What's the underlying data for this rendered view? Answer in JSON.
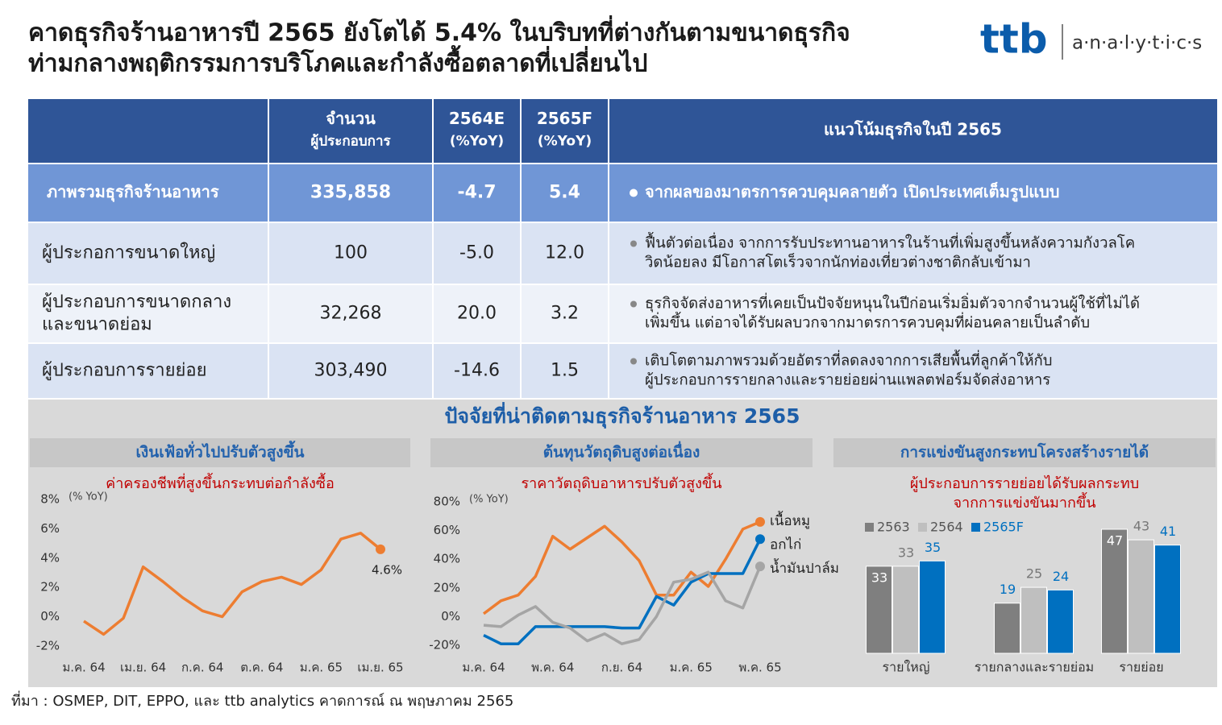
{
  "header": {
    "title": [
      "คาดธุรกิจร้านอาหารปี 2565 ยังโตได้ 5.4% ในบริบทที่ต่างกันตามขนาดธุรกิจ",
      "ท่ามกลางพฤติกรรมการบริโภคและกำลังซื้อตลาดที่เปลี่ยนไป"
    ],
    "logo": {
      "brand": "ttb",
      "name": "a·n·a·l·y·t·i·c·s"
    }
  },
  "table": {
    "columns": [
      [
        "จำนวน",
        "ผู้ประกอบการ"
      ],
      [
        "2564E",
        "(%YoY)"
      ],
      [
        "2565F",
        "(%YoY)"
      ],
      [
        "แนวโน้มธุรกิจในปี 2565"
      ]
    ],
    "rows": [
      {
        "name": [
          "ภาพรวมธุรกิจร้านอาหาร"
        ],
        "count": "335,858",
        "y2564": "-4.7",
        "y2565": "5.4",
        "outlook": [
          "จากผลของมาตรการควบคุมคลายตัว เปิดประเทศเต็มรูปแบบ"
        ]
      },
      {
        "name": [
          "ผู้ประกอการขนาดใหญ่"
        ],
        "count": "100",
        "y2564": "-5.0",
        "y2565": "12.0",
        "outlook": [
          "ฟื้นตัวต่อเนื่อง จากการรับประทานอาหารในร้านที่เพิ่มสูงขึ้นหลังความกังวลโค",
          "วิดน้อยลง มีโอกาสโตเร็วจากนักท่องเที่ยวต่างชาติกลับเข้ามา"
        ]
      },
      {
        "name": [
          "ผู้ประกอบการขนาดกลาง",
          "และขนาดย่อม"
        ],
        "count": "32,268",
        "y2564": "20.0",
        "y2565": "3.2",
        "outlook": [
          "ธุรกิจจัดส่งอาหารที่เคยเป็นปัจจัยหนุนในปีก่อนเริ่มอิ่มตัวจากจำนวนผู้ใช้ที่ไม่ได้",
          "เพิ่มขึ้น แต่อาจได้รับผลบวกจากมาตรการควบคุมที่ผ่อนคลายเป็นลำดับ"
        ]
      },
      {
        "name": [
          "ผู้ประกอบการรายย่อย"
        ],
        "count": "303,490",
        "y2564": "-14.6",
        "y2565": "1.5",
        "outlook": [
          "เติบโตตามภาพรวมด้วยอัตราที่ลดลงจากการเสียพื้นที่ลูกค้าให้กับ",
          "ผู้ประกอบการรายกลางและรายย่อยผ่านแพลตฟอร์มจัดส่งอาหาร"
        ]
      }
    ]
  },
  "section_title": "ปัจจัยที่น่าติดตามธุรกิจร้านอาหาร 2565",
  "chart_data": [
    {
      "type": "line",
      "header": "เงินเฟ้อทั่วไปปรับตัวสูงขึ้น",
      "title": [
        "ค่าครองชีพที่สูงขึ้นกระทบต่อกำลังซื้อ"
      ],
      "y_unit": "(% YoY)",
      "categories": [
        "ม.ค. 64",
        null,
        null,
        "เม.ย. 64",
        null,
        null,
        "ก.ค. 64",
        null,
        null,
        "ต.ค. 64",
        null,
        null,
        "ม.ค. 65",
        null,
        null,
        "เม.ย. 65"
      ],
      "values": [
        -0.3,
        -1.2,
        -0.1,
        3.4,
        2.4,
        1.3,
        0.4,
        0.0,
        1.7,
        2.4,
        2.7,
        2.2,
        3.2,
        5.3,
        5.7,
        4.6
      ],
      "value_labels": [
        null,
        null,
        null,
        null,
        null,
        null,
        null,
        null,
        null,
        null,
        null,
        null,
        null,
        null,
        null,
        "4.6%"
      ],
      "color": "#ed7d31",
      "ylim": [
        -2,
        8
      ],
      "yticks": [
        {
          "value": -2,
          "label": "-2%"
        },
        {
          "value": 0,
          "label": "0%"
        },
        {
          "value": 2,
          "label": "2%"
        },
        {
          "value": 4,
          "label": "4%"
        },
        {
          "value": 6,
          "label": "6%"
        },
        {
          "value": 8,
          "label": "8%"
        }
      ]
    },
    {
      "type": "line",
      "header": "ต้นทุนวัตถุดิบสูงต่อเนื่อง",
      "title": [
        "ราคาวัตถุดิบอาหารปรับตัวสูงขึ้น"
      ],
      "y_unit": "(% YoY)",
      "categories": [
        "ม.ค. 64",
        null,
        null,
        null,
        "พ.ค. 64",
        null,
        null,
        null,
        "ก.ย. 64",
        null,
        null,
        null,
        "ม.ค. 65",
        null,
        null,
        null,
        "พ.ค. 65"
      ],
      "series": [
        {
          "name": "เนื้อหมู",
          "color": "#ed7d31",
          "values": [
            2,
            11,
            15,
            28,
            56,
            47,
            55,
            63,
            52,
            39,
            15,
            15,
            31,
            21,
            40,
            61,
            66
          ]
        },
        {
          "name": "อกไก่",
          "color": "#0070c0",
          "values": [
            -13,
            -19,
            -19,
            -7,
            -7,
            -7,
            -7,
            -7,
            -8,
            -8,
            14,
            8,
            24,
            30,
            30,
            30,
            54
          ]
        },
        {
          "name": "น้ำมันปาล์ม",
          "color": "#a5a5a5",
          "values": [
            -6,
            -7,
            1,
            7,
            -4,
            -8,
            -17,
            -12,
            -19,
            -16,
            0,
            24,
            26,
            31,
            11,
            6,
            35
          ]
        }
      ],
      "ylim": [
        -20,
        80
      ],
      "yticks": [
        {
          "value": -20,
          "label": "-20%"
        },
        {
          "value": 0,
          "label": "0%"
        },
        {
          "value": 20,
          "label": "20%"
        },
        {
          "value": 40,
          "label": "40%"
        },
        {
          "value": 60,
          "label": "60%"
        },
        {
          "value": 80,
          "label": "80%"
        }
      ]
    },
    {
      "type": "bar",
      "header": "การแข่งขันสูงกระทบโครงสร้างรายได้",
      "title": [
        "ผู้ประกอบการรายย่อยได้รับผลกระทบ",
        "จากการแข่งขันมากขึ้น"
      ],
      "categories": [
        "รายใหญ่",
        "รายกลางและรายย่อม",
        "รายย่อย"
      ],
      "series": [
        {
          "name": "2563",
          "color": "#7f7f7f",
          "values": [
            33,
            19,
            47
          ]
        },
        {
          "name": "2564",
          "color": "#bfbfbf",
          "values": [
            33,
            25,
            43
          ]
        },
        {
          "name": "2565F",
          "color": "#0070c0",
          "values": [
            35,
            24,
            41
          ]
        }
      ],
      "legend": "top"
    }
  ],
  "source": "ที่มา : OSMEP, DIT, EPPO, และ ttb  analytics คาดการณ์ ณ พฤษภาคม 2565"
}
